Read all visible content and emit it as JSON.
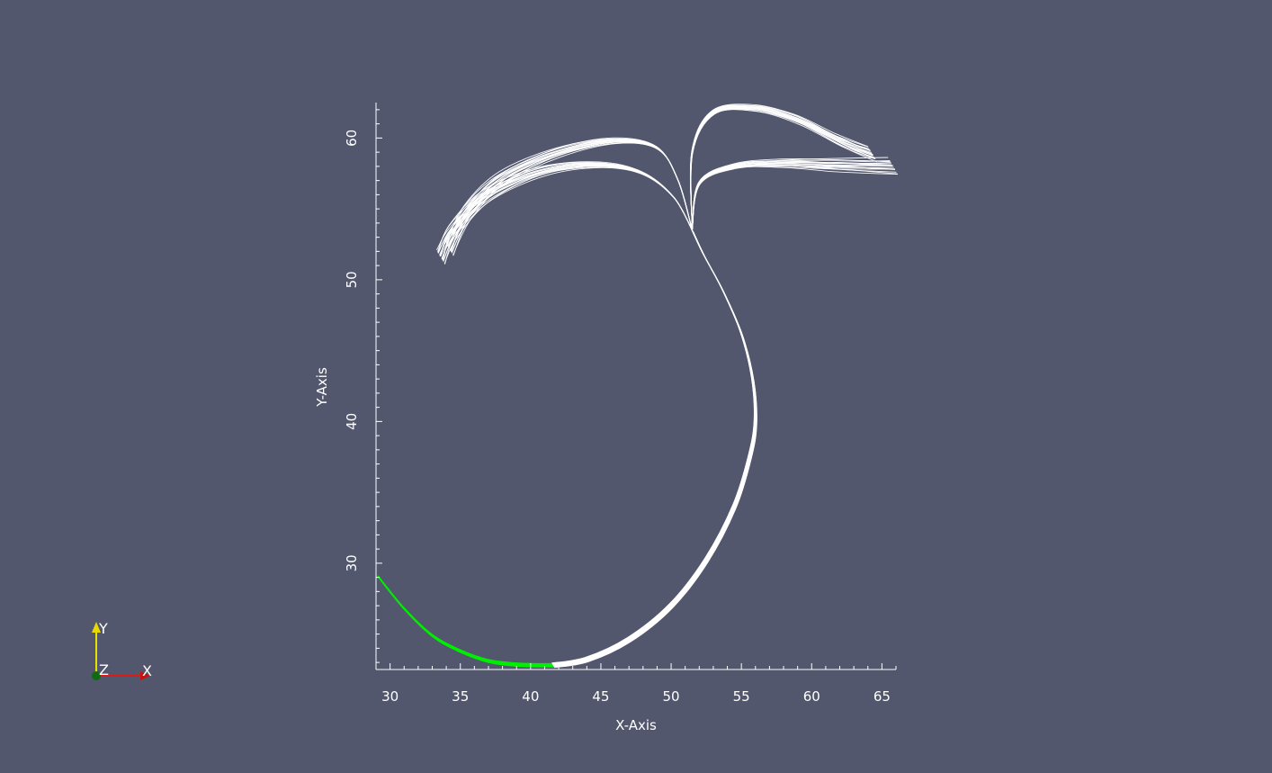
{
  "viewport": {
    "background": "#52576e"
  },
  "chart_data": {
    "type": "line",
    "title": "",
    "xlabel": "X-Axis",
    "ylabel": "Y-Axis",
    "xlim": [
      29,
      66
    ],
    "ylim": [
      22.5,
      62.5
    ],
    "x_ticks": [
      30,
      35,
      40,
      45,
      50,
      55,
      60,
      65
    ],
    "y_ticks": [
      30,
      40,
      50,
      60
    ],
    "x_minor_step": 1,
    "y_minor_step": 1,
    "grid": false,
    "legend": "none",
    "line_color": "#ffffff",
    "highlight_color": "#00ee00",
    "series": [
      {
        "color": "#00ee00",
        "x": [
          29.2,
          31,
          33,
          35,
          37,
          39,
          40.5,
          41.6
        ],
        "y": [
          29.0,
          26.8,
          24.9,
          23.8,
          23.1,
          22.85,
          22.8,
          22.8
        ]
      },
      {
        "color": "#ffffff",
        "x": [
          41.6,
          44,
          47,
          50,
          52.5,
          54.5,
          55.6,
          56,
          55.8,
          55,
          53.7,
          52.3,
          51.5
        ],
        "y": [
          22.8,
          23.2,
          24.6,
          27.0,
          30.2,
          34.0,
          37.5,
          40.0,
          43.0,
          46.2,
          49.2,
          51.8,
          53.5
        ]
      },
      {
        "color": "#ffffff",
        "x": [
          51.5,
          50.2,
          48,
          45,
          41,
          37,
          34.5,
          33.6
        ],
        "y": [
          53.5,
          55.8,
          57.5,
          58.1,
          57.7,
          56.0,
          53.5,
          51.6
        ]
      },
      {
        "color": "#ffffff",
        "x": [
          51.5,
          50.5,
          49,
          46,
          42,
          38,
          35.5,
          34.2
        ],
        "y": [
          53.5,
          57.0,
          59.3,
          59.8,
          59.0,
          57.2,
          54.8,
          52.2
        ]
      },
      {
        "color": "#ffffff",
        "x": [
          51.5,
          51.5,
          53,
          56,
          59,
          62,
          64.3
        ],
        "y": [
          53.5,
          59.0,
          61.8,
          62.1,
          61.3,
          59.8,
          58.9
        ]
      },
      {
        "color": "#ffffff",
        "x": [
          51.5,
          52,
          54.5,
          58,
          61.5,
          65.8
        ],
        "y": [
          53.5,
          56.8,
          58.0,
          58.2,
          58.1,
          58.0
        ]
      }
    ]
  },
  "orientation_axes": {
    "x_label": "X",
    "y_label": "Y",
    "z_label": "Z"
  }
}
